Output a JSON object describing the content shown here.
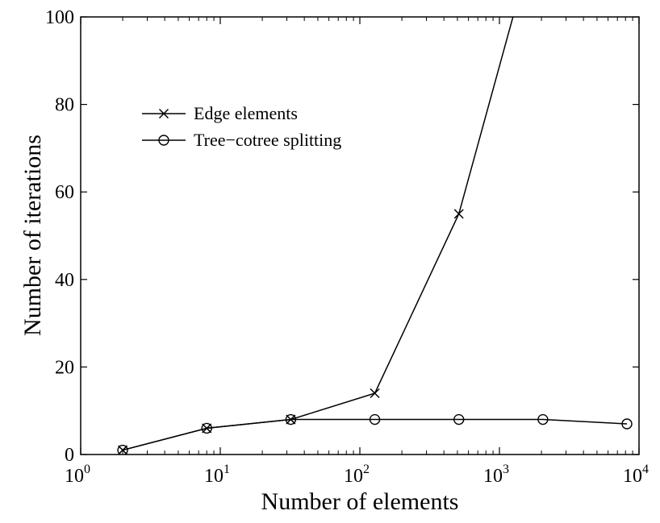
{
  "chart_data": {
    "type": "line",
    "title": "",
    "xlabel": "Number of elements",
    "ylabel": "Number of iterations",
    "x_scale": "log",
    "xlim": [
      1,
      10000
    ],
    "ylim": [
      0,
      100
    ],
    "grid": false,
    "legend_position": "top-left",
    "x_ticks": [
      {
        "base": "10",
        "exp": "0"
      },
      {
        "base": "10",
        "exp": "1"
      },
      {
        "base": "10",
        "exp": "2"
      },
      {
        "base": "10",
        "exp": "3"
      },
      {
        "base": "10",
        "exp": "4"
      }
    ],
    "y_ticks": [
      "0",
      "20",
      "40",
      "60",
      "80",
      "100"
    ],
    "series": [
      {
        "name": "Edge elements",
        "marker": "x",
        "color": "#000000",
        "x": [
          2,
          8,
          32,
          128,
          512,
          1250
        ],
        "y": [
          1,
          6,
          8,
          14,
          55,
          100
        ]
      },
      {
        "name": "Tree−cotree splitting",
        "marker": "o",
        "color": "#000000",
        "x": [
          2,
          8,
          32,
          128,
          512,
          2048,
          8192
        ],
        "y": [
          1,
          6,
          8,
          8,
          8,
          8,
          7
        ]
      }
    ]
  }
}
